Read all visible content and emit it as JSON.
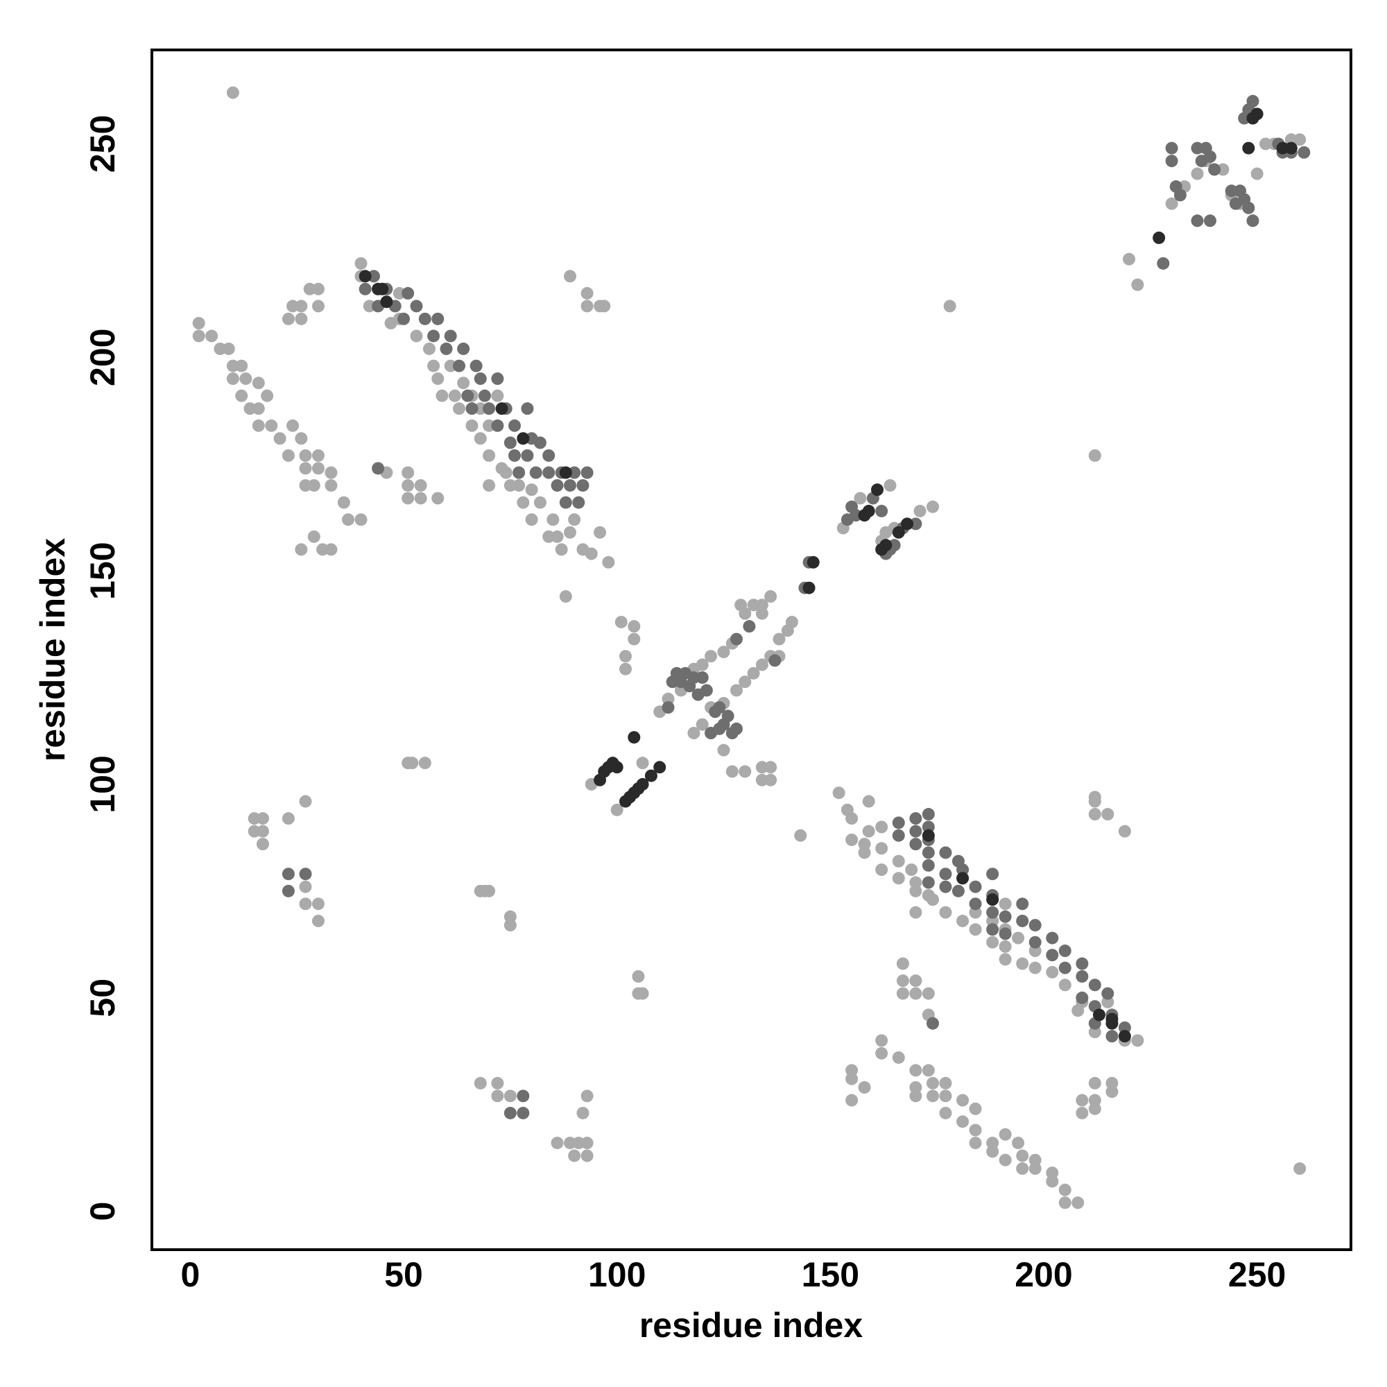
{
  "chart_data": {
    "type": "scatter",
    "xlabel": "residue index",
    "ylabel": "residue index",
    "xlim": [
      -9,
      272
    ],
    "ylim": [
      -9,
      272
    ],
    "xticks": [
      0,
      50,
      100,
      150,
      200,
      250
    ],
    "yticks": [
      0,
      50,
      100,
      150,
      200,
      250
    ],
    "grid": false,
    "series": [
      {
        "color": "#aaaaaa",
        "x": [
          2,
          2,
          5,
          7,
          9,
          10,
          10,
          12,
          12,
          13,
          14,
          16,
          16,
          16,
          18,
          19,
          21,
          23,
          24,
          26,
          27,
          27,
          27,
          29,
          30,
          30,
          33,
          33,
          36,
          37,
          40,
          26,
          29,
          31,
          33,
          26,
          28,
          30,
          23,
          24,
          30,
          26,
          208,
          205,
          205,
          202,
          202,
          198,
          195,
          198,
          191,
          195,
          188,
          194,
          188,
          184,
          191,
          184,
          181,
          177,
          184,
          181,
          177,
          174,
          170,
          170,
          177,
          174,
          173,
          170,
          166,
          162,
          162,
          155,
          158,
          155,
          155,
          212,
          216,
          212,
          209,
          212,
          216,
          209,
          40,
          40,
          42,
          47,
          49,
          49,
          53,
          56,
          57,
          58,
          59,
          61,
          62,
          63,
          64,
          66,
          66,
          68,
          68,
          70,
          70,
          70,
          72,
          73,
          74,
          75,
          77,
          78,
          80,
          80,
          82,
          84,
          85,
          86,
          87,
          89,
          90,
          92,
          94,
          96,
          98,
          46,
          51,
          51,
          51,
          54,
          54,
          58,
          89,
          93,
          93,
          96,
          97,
          222,
          219,
          212,
          208,
          209,
          215,
          205,
          202,
          198,
          195,
          191,
          198,
          191,
          188,
          194,
          184,
          191,
          181,
          188,
          184,
          177,
          170,
          191,
          174,
          173,
          170,
          170,
          166,
          169,
          162,
          166,
          158,
          162,
          158,
          155,
          159,
          162,
          155,
          154,
          159,
          152,
          173,
          173,
          170,
          167,
          167,
          170,
          167,
          219,
          215,
          212,
          212,
          212,
          94,
          100,
          106,
          110,
          112,
          115,
          118,
          120,
          122,
          125,
          127,
          130,
          132,
          134,
          136,
          118,
          120,
          122,
          125,
          128,
          130,
          132,
          134,
          136,
          138,
          140,
          141,
          138,
          134,
          129,
          153,
          157,
          164,
          171,
          174,
          101,
          104,
          104,
          102,
          102,
          125,
          127,
          130,
          134,
          134,
          136,
          136,
          143,
          88,
          15,
          17,
          15,
          17,
          17,
          23,
          27,
          27,
          30,
          27,
          30,
          68,
          69,
          70,
          75,
          75,
          105,
          106,
          105,
          51,
          52,
          55,
          68,
          72,
          72,
          75,
          93,
          92,
          86,
          89,
          91,
          93,
          90,
          93,
          178,
          220,
          222,
          212,
          10,
          260,
          230,
          233,
          236,
          238,
          242,
          244,
          246,
          250,
          252,
          254,
          258,
          260,
          162,
          163,
          165
        ],
        "values": [
          208,
          205,
          205,
          202,
          202,
          198,
          195,
          198,
          191,
          195,
          188,
          194,
          188,
          184,
          191,
          184,
          181,
          177,
          184,
          181,
          177,
          174,
          170,
          170,
          177,
          174,
          173,
          170,
          166,
          162,
          162,
          155,
          158,
          155,
          155,
          212,
          216,
          212,
          209,
          212,
          216,
          209,
          2,
          2,
          5,
          7,
          9,
          10,
          10,
          12,
          12,
          13,
          14,
          16,
          16,
          16,
          18,
          19,
          21,
          23,
          24,
          26,
          27,
          27,
          27,
          29,
          30,
          30,
          33,
          33,
          36,
          37,
          40,
          26,
          29,
          31,
          33,
          26,
          28,
          30,
          23,
          24,
          30,
          26,
          222,
          219,
          212,
          208,
          209,
          215,
          205,
          202,
          198,
          195,
          191,
          198,
          191,
          188,
          194,
          184,
          191,
          181,
          188,
          184,
          177,
          170,
          191,
          174,
          173,
          170,
          170,
          166,
          169,
          162,
          166,
          158,
          162,
          158,
          155,
          159,
          162,
          155,
          154,
          159,
          152,
          173,
          173,
          170,
          167,
          167,
          170,
          167,
          219,
          215,
          212,
          212,
          212,
          40,
          40,
          42,
          47,
          49,
          49,
          53,
          56,
          57,
          58,
          59,
          61,
          62,
          63,
          64,
          66,
          66,
          68,
          68,
          70,
          70,
          70,
          72,
          73,
          74,
          75,
          77,
          78,
          80,
          80,
          82,
          84,
          85,
          86,
          87,
          89,
          90,
          92,
          94,
          96,
          98,
          46,
          51,
          51,
          51,
          54,
          54,
          58,
          89,
          93,
          93,
          96,
          97,
          100,
          94,
          105,
          117,
          120,
          122,
          127,
          128,
          130,
          131,
          133,
          140,
          142,
          142,
          144,
          112,
          114,
          118,
          119,
          122,
          124,
          126,
          128,
          130,
          134,
          136,
          138,
          130,
          140,
          142,
          160,
          167,
          170,
          164,
          165,
          138,
          137,
          134,
          130,
          127,
          108,
          103,
          103,
          104,
          101,
          101,
          104,
          88,
          144,
          92,
          92,
          89,
          89,
          86,
          92,
          96,
          76,
          72,
          72,
          68,
          75,
          75,
          75,
          69,
          67,
          55,
          51,
          51,
          105,
          105,
          105,
          30,
          30,
          27,
          27,
          27,
          23,
          16,
          16,
          16,
          16,
          13,
          13,
          212,
          223,
          217,
          177,
          262,
          10,
          236,
          240,
          243,
          246,
          244,
          238,
          236,
          243,
          250,
          250,
          251,
          251,
          157,
          159,
          160
        ]
      },
      {
        "color": "#6e6e6e",
        "x": [
          41,
          43,
          44,
          46,
          48,
          50,
          51,
          53,
          55,
          57,
          58,
          60,
          61,
          63,
          64,
          65,
          66,
          67,
          68,
          69,
          70,
          72,
          72,
          74,
          75,
          76,
          76,
          77,
          79,
          79,
          80,
          81,
          82,
          84,
          84,
          86,
          87,
          88,
          89,
          90,
          91,
          92,
          93,
          44,
          216,
          219,
          212,
          216,
          212,
          209,
          215,
          212,
          209,
          205,
          209,
          202,
          205,
          198,
          202,
          191,
          188,
          198,
          195,
          191,
          188,
          184,
          195,
          188,
          180,
          184,
          177,
          173,
          188,
          177,
          181,
          173,
          180,
          177,
          173,
          170,
          173,
          166,
          170,
          173,
          166,
          170,
          173,
          174,
          112,
          113,
          114,
          115,
          116,
          117,
          118,
          119,
          120,
          121,
          122,
          124,
          125,
          126,
          127,
          128,
          123,
          124,
          128,
          131,
          137,
          144,
          145,
          154,
          155,
          156,
          160,
          162,
          163,
          164,
          165,
          167,
          170,
          23,
          27,
          23,
          78,
          78,
          75,
          230,
          230,
          231,
          232,
          236,
          237,
          238,
          239,
          240,
          236,
          239,
          244,
          245,
          246,
          247,
          248,
          249,
          248,
          247,
          249,
          255,
          256,
          258,
          261,
          228
        ],
        "values": [
          216,
          219,
          212,
          216,
          212,
          209,
          215,
          212,
          209,
          205,
          209,
          202,
          205,
          198,
          202,
          191,
          188,
          198,
          195,
          191,
          188,
          184,
          195,
          188,
          180,
          184,
          177,
          173,
          188,
          177,
          181,
          173,
          180,
          177,
          173,
          170,
          173,
          166,
          170,
          173,
          166,
          170,
          173,
          174,
          41,
          43,
          44,
          46,
          48,
          50,
          51,
          53,
          55,
          57,
          58,
          60,
          61,
          63,
          64,
          65,
          66,
          67,
          68,
          69,
          70,
          72,
          72,
          74,
          75,
          76,
          76,
          77,
          79,
          79,
          80,
          81,
          82,
          84,
          84,
          86,
          87,
          88,
          89,
          90,
          91,
          92,
          93,
          44,
          118,
          124,
          126,
          124,
          126,
          123,
          125,
          121,
          125,
          122,
          112,
          113,
          114,
          116,
          112,
          113,
          117,
          118,
          134,
          137,
          129,
          146,
          152,
          162,
          165,
          163,
          167,
          164,
          154,
          155,
          156,
          160,
          161,
          79,
          79,
          75,
          27,
          23,
          23,
          249,
          246,
          240,
          238,
          249,
          246,
          249,
          247,
          244,
          232,
          232,
          239,
          236,
          239,
          237,
          235,
          232,
          258,
          256,
          260,
          250,
          248,
          248,
          248,
          222
        ]
      },
      {
        "color": "#2a2a2a",
        "x": [
          41,
          44,
          46,
          45,
          73,
          78,
          88,
          219,
          216,
          213,
          216,
          188,
          181,
          173,
          96,
          97,
          98,
          99,
          100,
          102,
          103,
          104,
          105,
          104,
          106,
          108,
          110,
          145,
          146,
          158,
          159,
          162,
          163,
          161,
          166,
          168,
          249,
          250,
          248,
          256,
          258,
          227
        ],
        "values": [
          219,
          216,
          213,
          216,
          188,
          181,
          173,
          41,
          44,
          46,
          45,
          73,
          78,
          88,
          101,
          103,
          104,
          105,
          104,
          96,
          97,
          98,
          99,
          111,
          100,
          102,
          104,
          146,
          152,
          163,
          164,
          155,
          156,
          169,
          159,
          161,
          256,
          257,
          249,
          249,
          249,
          228
        ]
      }
    ]
  }
}
